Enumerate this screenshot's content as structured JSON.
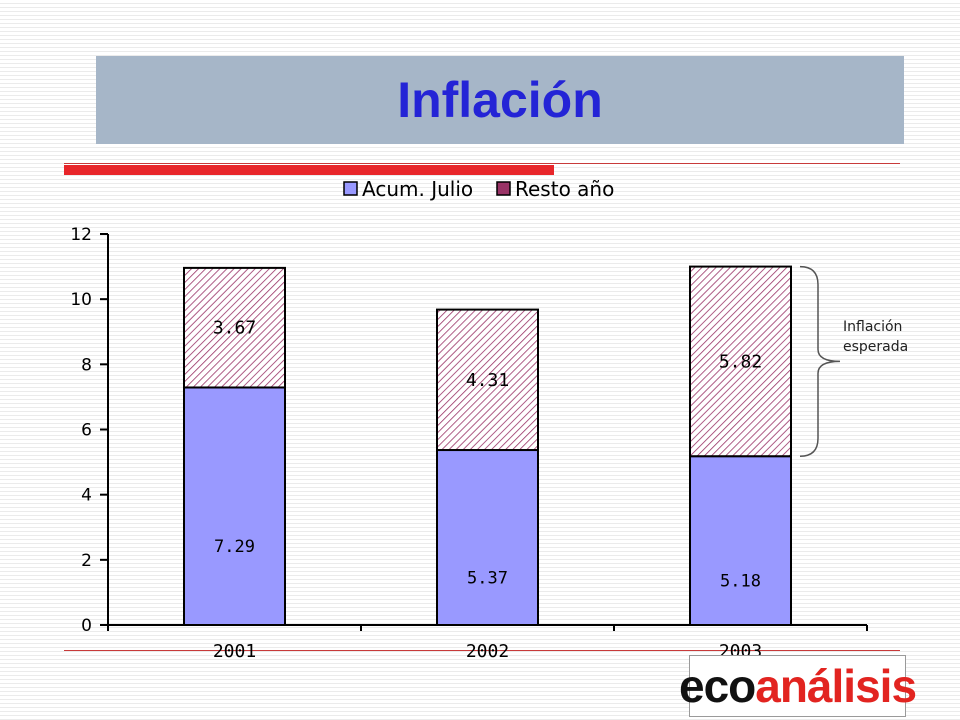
{
  "slide": {
    "title": "Inflación"
  },
  "logo": {
    "text_part1": "eco",
    "text_part2": "análisis"
  },
  "colors": {
    "title_band": "#a6b6c8",
    "title_text": "#2424d6",
    "accent_red": "#e8262a",
    "series_acum": "#9999ff",
    "series_resto": "#993366"
  },
  "chart_data": {
    "type": "bar",
    "stacked": true,
    "title": "",
    "xlabel": "",
    "ylabel": "",
    "categories": [
      "2001",
      "2002",
      "2003"
    ],
    "series": [
      {
        "name": "Acum. Julio",
        "values": [
          7.29,
          5.37,
          5.18
        ],
        "labels": [
          "7.29",
          "5.37",
          "5.18"
        ]
      },
      {
        "name": "Resto año",
        "values": [
          3.67,
          4.31,
          5.82
        ],
        "labels": [
          "3.67",
          "4.31",
          "5.82"
        ]
      }
    ],
    "ylim": [
      0,
      12
    ],
    "yticks": [
      "0",
      "2",
      "4",
      "6",
      "8",
      "10",
      "12"
    ],
    "legend_position": "top",
    "grid": false,
    "annotation": {
      "text_line1": "Inflación",
      "text_line2": "esperada",
      "target": "2003 Resto año"
    }
  }
}
